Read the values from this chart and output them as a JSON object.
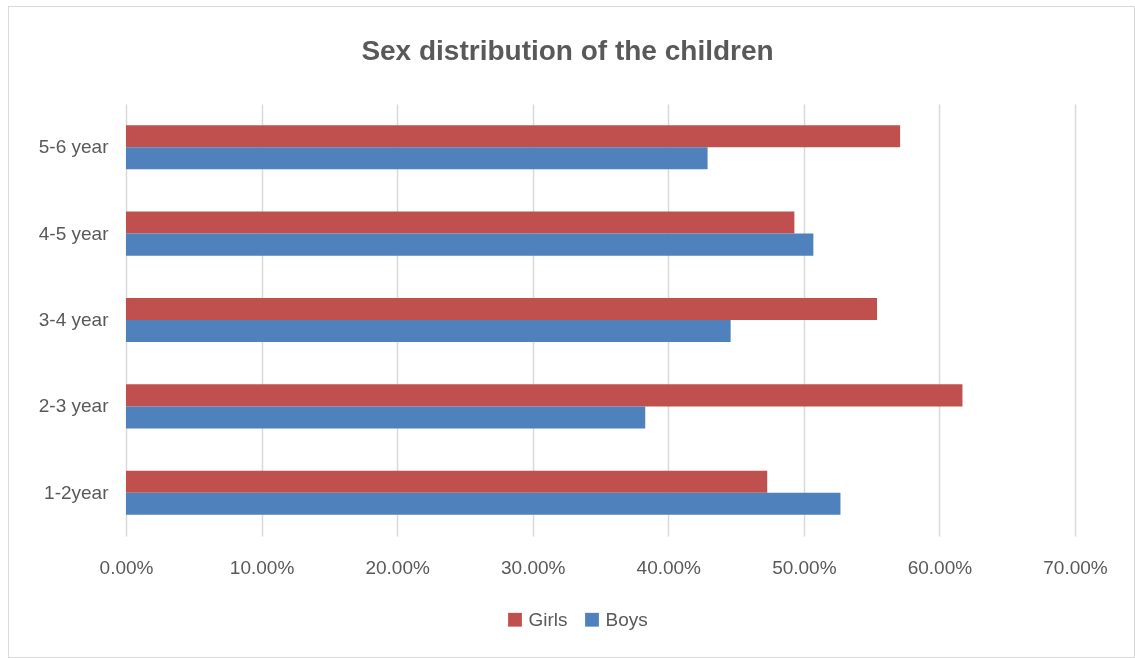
{
  "chart_data": {
    "type": "bar",
    "orientation": "horizontal",
    "title": "Sex distribution of the children",
    "categories": [
      "5-6 year",
      "4-5 year",
      "3-4 year",
      "2-3 year",
      "1-2year"
    ],
    "series": [
      {
        "name": "Girls",
        "color": "#c0504d",
        "values": [
          57.1,
          49.3,
          55.4,
          61.7,
          47.3
        ]
      },
      {
        "name": "Boys",
        "color": "#4f81bd",
        "values": [
          42.9,
          50.7,
          44.6,
          38.3,
          52.7
        ]
      }
    ],
    "xlim": [
      0,
      70
    ],
    "xticks": [
      {
        "value": 0,
        "label": "0.00%"
      },
      {
        "value": 10,
        "label": "10.00%"
      },
      {
        "value": 20,
        "label": "20.00%"
      },
      {
        "value": 30,
        "label": "30.00%"
      },
      {
        "value": 40,
        "label": "40.00%"
      },
      {
        "value": 50,
        "label": "50.00%"
      },
      {
        "value": 60,
        "label": "60.00%"
      },
      {
        "value": 70,
        "label": "70.00%"
      }
    ],
    "grid": "x",
    "legend": "bottom"
  }
}
